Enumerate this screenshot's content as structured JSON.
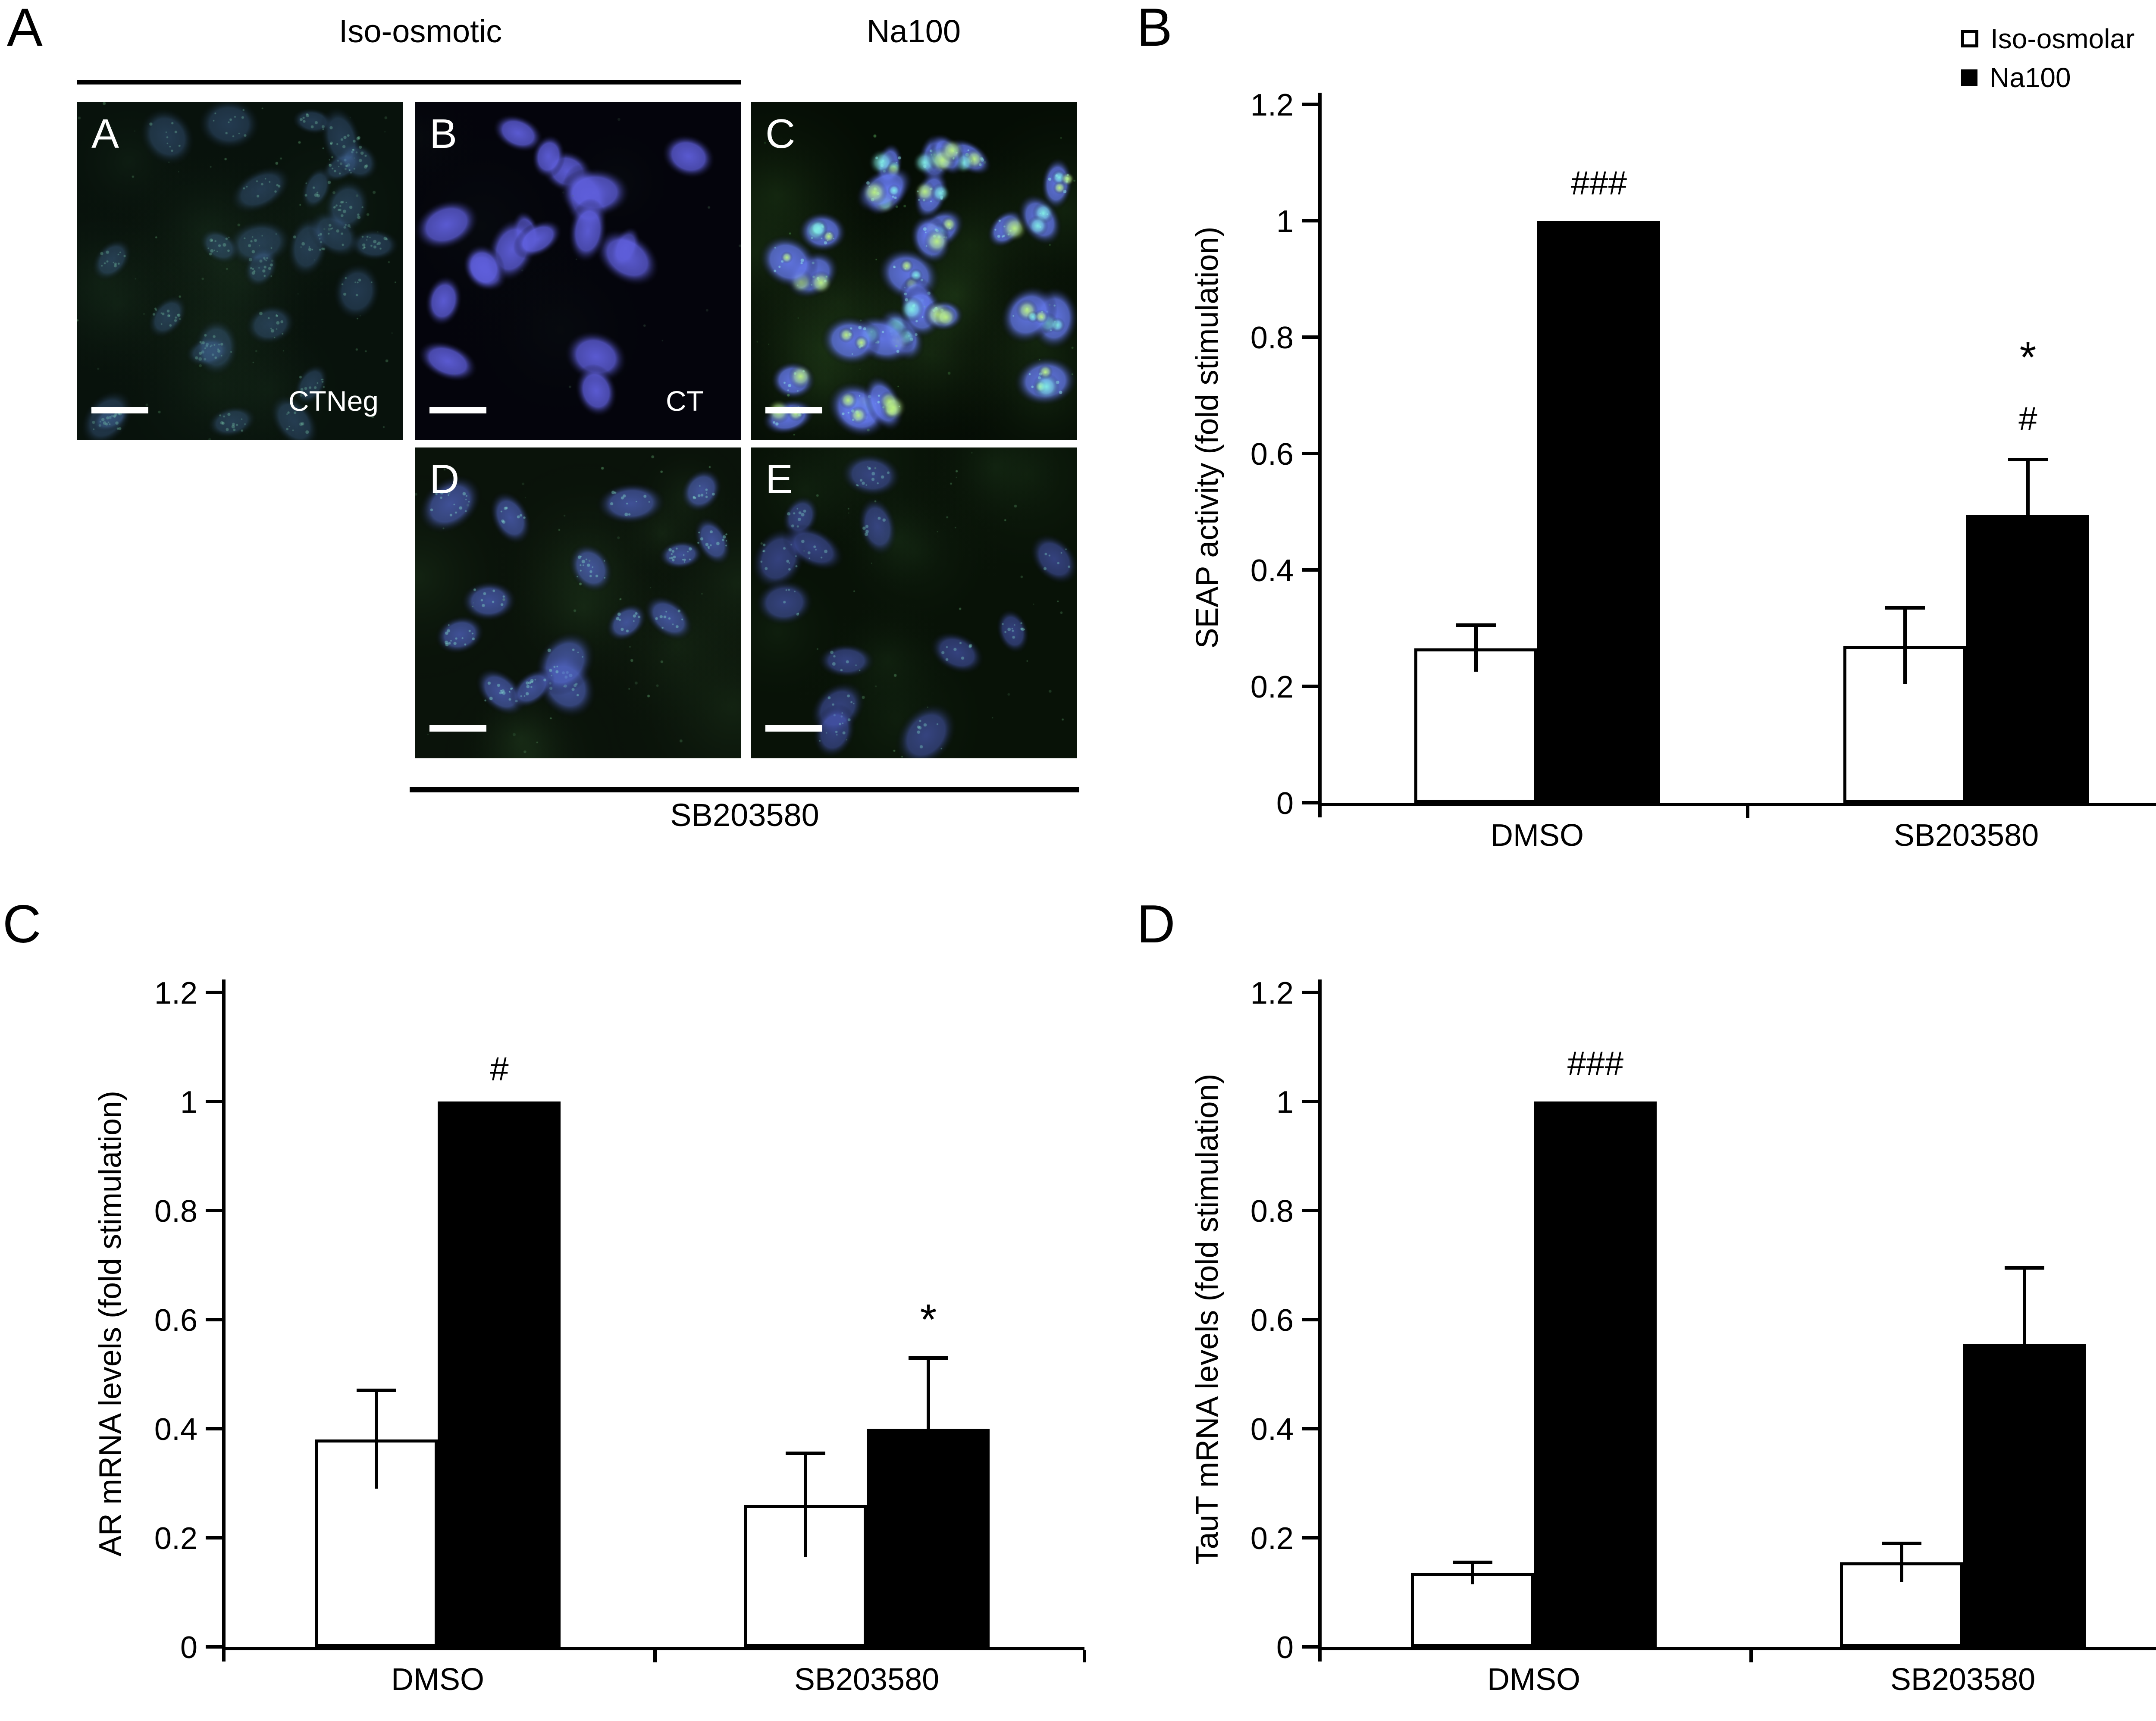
{
  "panel_a": {
    "label": "A",
    "headers": [
      "Iso-osmotic",
      "Na100"
    ],
    "images": [
      {
        "letter": "A",
        "overlay": "CTNeg"
      },
      {
        "letter": "B",
        "overlay": "CT"
      },
      {
        "letter": "C",
        "overlay": ""
      },
      {
        "letter": "D",
        "overlay": ""
      },
      {
        "letter": "E",
        "overlay": ""
      }
    ],
    "bottom_label": "SB203580"
  },
  "chart_data": [
    {
      "id": "B",
      "panel_label": "B",
      "type": "bar",
      "title": "",
      "ylabel": "SEAP activity (fold stimulation)",
      "xlabel": "",
      "categories": [
        "DMSO",
        "SB203580"
      ],
      "series": [
        {
          "name": "Iso-osmolar",
          "fill": "#ffffff",
          "values": [
            0.265,
            0.27
          ],
          "errors": [
            0.04,
            0.065
          ]
        },
        {
          "name": "Na100",
          "fill": "#000000",
          "values": [
            1.0,
            0.495
          ],
          "errors": [
            0,
            0.095
          ]
        }
      ],
      "ylim": [
        0,
        1.2
      ],
      "ytick_labels": [
        "0",
        "0.2",
        "0.4",
        "0.6",
        "0.8",
        "1",
        "1.2"
      ],
      "grid": false,
      "legend": {
        "position": "top-right",
        "items": [
          "Iso-osmolar",
          "Na100"
        ]
      },
      "annotations": [
        {
          "text": "###",
          "category": 0,
          "series": 1,
          "value_y": 1.065
        },
        {
          "text": "*",
          "category": 1,
          "series": 1,
          "value_y": 0.765
        },
        {
          "text": "#",
          "category": 1,
          "series": 1,
          "value_y": 0.66
        }
      ]
    },
    {
      "id": "C",
      "panel_label": "C",
      "type": "bar",
      "title": "",
      "ylabel": "AR mRNA levels (fold stimulation)",
      "xlabel": "",
      "categories": [
        "DMSO",
        "SB203580"
      ],
      "series": [
        {
          "name": "Iso-osmolar",
          "fill": "#ffffff",
          "values": [
            0.38,
            0.26
          ],
          "errors": [
            0.09,
            0.095
          ]
        },
        {
          "name": "Na100",
          "fill": "#000000",
          "values": [
            1.0,
            0.4
          ],
          "errors": [
            0,
            0.13
          ]
        }
      ],
      "ylim": [
        0,
        1.2
      ],
      "ytick_labels": [
        "0",
        "0.2",
        "0.4",
        "0.6",
        "0.8",
        "1",
        "1.2"
      ],
      "grid": false,
      "annotations": [
        {
          "text": "#",
          "category": 0,
          "series": 1,
          "value_y": 1.06
        },
        {
          "text": "*",
          "category": 1,
          "series": 1,
          "value_y": 0.6
        }
      ]
    },
    {
      "id": "D",
      "panel_label": "D",
      "type": "bar",
      "title": "",
      "ylabel": "TauT mRNA levels (fold stimulation)",
      "xlabel": "",
      "categories": [
        "DMSO",
        "SB203580"
      ],
      "series": [
        {
          "name": "Iso-osmolar",
          "fill": "#ffffff",
          "values": [
            0.135,
            0.155
          ],
          "errors": [
            0.02,
            0.035
          ]
        },
        {
          "name": "Na100",
          "fill": "#000000",
          "values": [
            1.0,
            0.555
          ],
          "errors": [
            0,
            0.14
          ]
        }
      ],
      "ylim": [
        0,
        1.2
      ],
      "ytick_labels": [
        "0",
        "0.2",
        "0.4",
        "0.6",
        "0.8",
        "1",
        "1.2"
      ],
      "grid": false,
      "annotations": [
        {
          "text": "###",
          "category": 0,
          "series": 1,
          "value_y": 1.07
        }
      ]
    }
  ]
}
